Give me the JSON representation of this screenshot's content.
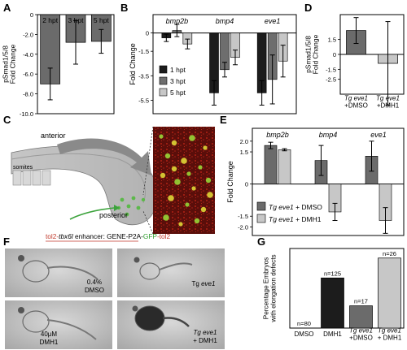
{
  "panel_letters": [
    "A",
    "B",
    "C",
    "D",
    "E",
    "F",
    "G"
  ],
  "chart_data": [
    {
      "panel": "A",
      "type": "bar",
      "categories": [
        "2 hpt",
        "3 hpt",
        "5 hpt"
      ],
      "values": [
        -7.0,
        -2.8,
        -2.7
      ],
      "errors": [
        1.6,
        2.2,
        1.2
      ],
      "ylabel": "pSmad1/5/8\nFold Change",
      "ylim": [
        -10,
        0
      ],
      "yticks": [
        0,
        -2.0,
        -4.0,
        -6.0,
        -8.0,
        -10.0
      ],
      "ytick_labels": [
        "0",
        "-2.0",
        "-4.0",
        "-6.0",
        "-8.0",
        "-10.0"
      ],
      "color": "#6b6b6b"
    },
    {
      "panel": "B",
      "type": "bar",
      "groups": [
        "bmp2b",
        "bmp4",
        "eve1"
      ],
      "series": [
        {
          "name": "1 hpt",
          "color": "#1c1c1c",
          "values": [
            -0.4,
            -4.9,
            -4.9
          ],
          "errors": [
            0.3,
            1.0,
            1.0
          ]
        },
        {
          "name": "3 hpt",
          "color": "#6e6e6e",
          "values": [
            0.2,
            -3.0,
            -3.8
          ],
          "errors": [
            0.5,
            0.6,
            2.0
          ]
        },
        {
          "name": "5 hpt",
          "color": "#c7c7c7",
          "values": [
            -0.9,
            -2.0,
            -2.3
          ],
          "errors": [
            0.4,
            0.6,
            1.3
          ]
        }
      ],
      "ylabel": "Fold Change",
      "ylim": [
        -6.6,
        1.5
      ],
      "yticks": [
        0,
        -1.5,
        -3.5,
        -5.5
      ],
      "ytick_labels": [
        "0",
        "-1.5",
        "-3.5",
        "-5.5"
      ]
    },
    {
      "panel": "D",
      "type": "bar",
      "categories": [
        "Tg eve1\n+DMSO",
        "Tg eve1\n+DMH1"
      ],
      "values": [
        2.4,
        -0.9
      ],
      "errors": [
        1.3,
        4.2
      ],
      "colors": [
        "#6b6b6b",
        "#c7c7c7"
      ],
      "ylabel": "pSmad1/5/8\nFold Change",
      "ylim": [
        -4.0,
        4.0
      ],
      "yticks": [
        1.5,
        0,
        -1.5,
        -2.5
      ],
      "ytick_labels": [
        "1.5",
        "0",
        "-1.5",
        "-2.5"
      ]
    },
    {
      "panel": "E",
      "type": "bar",
      "groups": [
        "bmp2b",
        "bmp4",
        "eve1"
      ],
      "series": [
        {
          "name": "Tg eve1 + DMSO",
          "color": "#6b6b6b",
          "values": [
            1.8,
            1.1,
            1.3
          ],
          "errors": [
            0.15,
            0.7,
            0.7
          ]
        },
        {
          "name": "Tg eve1 + DMH1",
          "color": "#c7c7c7",
          "values": [
            1.6,
            -1.3,
            -1.7
          ],
          "errors": [
            0.05,
            0.4,
            0.6
          ]
        }
      ],
      "ylabel": "Fold Change",
      "ylim": [
        -2.4,
        2.6
      ],
      "yticks": [
        2.0,
        1.5,
        0,
        -1.5,
        -2.0
      ],
      "ytick_labels": [
        "2.0",
        "1.5",
        "0",
        "-1.5",
        "-2.0"
      ]
    },
    {
      "panel": "G",
      "type": "bar",
      "categories": [
        "DMSO",
        "DMH1",
        "Tg eve1\n+DMSO",
        "Tg eve1\n+ DMH1"
      ],
      "values": [
        0,
        63,
        28,
        88
      ],
      "counts": [
        "n=80",
        "n=125",
        "n=17",
        "n=26"
      ],
      "colors": [
        "#ffffff",
        "#1c1c1c",
        "#6b6b6b",
        "#c7c7c7"
      ],
      "ylabel": "Percentage Embryos\nwith elongation defects",
      "ylim": [
        0,
        100
      ]
    }
  ],
  "panel_c": {
    "anterior": "anterior",
    "posterior": "posterior",
    "somites": "somites",
    "construct": {
      "p1": "tol2-",
      "p2": "tbx6l",
      "p3": " enhancer: GENE-P2A-",
      "p4": "GFP",
      "p5": "-tol2"
    }
  },
  "panel_f": {
    "labels": [
      {
        "l1": "0.4%",
        "l2": "DMSO"
      },
      {
        "l1": "Tg ",
        "l2": "eve1"
      },
      {
        "l1": "40μM",
        "l2": "DMH1"
      },
      {
        "l1": "Tg eve1",
        "l2": "+ DMH1"
      }
    ]
  }
}
